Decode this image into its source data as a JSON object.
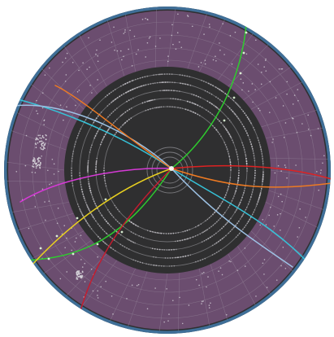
{
  "scene": {
    "kind": "event-display",
    "colors": {
      "background": "#ffffff",
      "frame": "#2f2f31",
      "outer_ring": "#3f6f98",
      "calorimeter": "#6b4d6f",
      "calorimeter_grid": "#8d7a92",
      "tracker": "#2f2f30",
      "tracker_rings": "#8a8a8e",
      "hits": "#d8d6dc"
    },
    "tracks": [
      {
        "name": "green",
        "color": "#2ecc2e"
      },
      {
        "name": "cyan",
        "color": "#36c2d8"
      },
      {
        "name": "light-blue",
        "color": "#9ec3e6"
      },
      {
        "name": "orange",
        "color": "#ee7a22"
      },
      {
        "name": "red",
        "color": "#dd2222"
      },
      {
        "name": "crimson",
        "color": "#c41c2e"
      },
      {
        "name": "magenta",
        "color": "#d63ad6"
      },
      {
        "name": "yellow",
        "color": "#e8d020"
      }
    ]
  }
}
